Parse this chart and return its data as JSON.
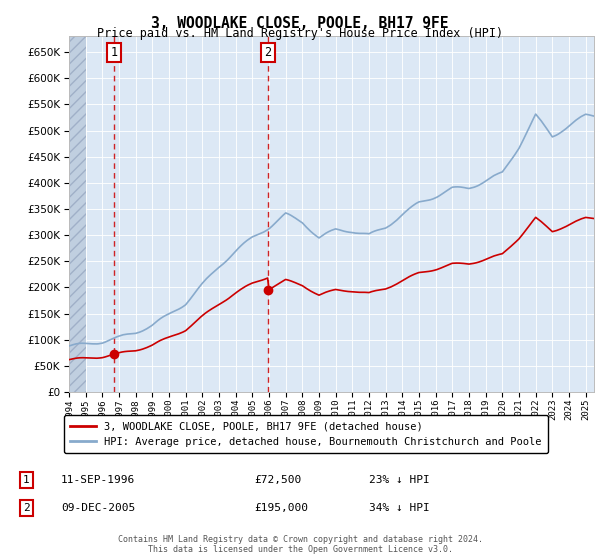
{
  "title": "3, WOODLAKE CLOSE, POOLE, BH17 9FE",
  "subtitle": "Price paid vs. HM Land Registry's House Price Index (HPI)",
  "ylim": [
    0,
    680000
  ],
  "sale1_date": 1996.7,
  "sale1_price": 72500,
  "sale1_label": "1",
  "sale2_date": 2005.92,
  "sale2_price": 195000,
  "sale2_label": "2",
  "property_color": "#cc0000",
  "hpi_color": "#88aacc",
  "plot_bg_color": "#dce8f5",
  "hatch_color": "#c0cfe0",
  "legend_property": "3, WOODLAKE CLOSE, POOLE, BH17 9FE (detached house)",
  "legend_hpi": "HPI: Average price, detached house, Bournemouth Christchurch and Poole",
  "footer": "Contains HM Land Registry data © Crown copyright and database right 2024.\nThis data is licensed under the Open Government Licence v3.0.",
  "xmin": 1994.0,
  "xmax": 2025.5,
  "hatch_end": 1995.0
}
